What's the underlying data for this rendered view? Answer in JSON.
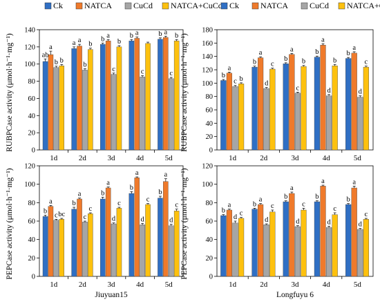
{
  "legend": {
    "items": [
      {
        "label": "Ck",
        "color": "#2f6fc4"
      },
      {
        "label": "NATCA",
        "color": "#ef7a2b"
      },
      {
        "label": "CuCd",
        "color": "#a6a6a6"
      },
      {
        "label": "NATCA+CuCd",
        "color": "#fdc10e"
      }
    ]
  },
  "chart_data": [
    {
      "type": "bar",
      "ylabel": "RUBPCase activity (μmol·h⁻¹·mg⁻¹)",
      "xlabel": "",
      "ylim": [
        0,
        140
      ],
      "yticks": [
        0,
        20,
        40,
        60,
        80,
        100,
        120,
        140
      ],
      "categories": [
        "1d",
        "2d",
        "3d",
        "4d",
        "5d"
      ],
      "series": [
        {
          "name": "Ck",
          "values": [
            103,
            118,
            123,
            127,
            129
          ],
          "errors": [
            3,
            2,
            1.5,
            1.5,
            1.5
          ],
          "labels": [
            "ab",
            "a",
            "b",
            "b",
            "b"
          ]
        },
        {
          "name": "NATCA",
          "values": [
            111,
            121,
            127,
            130,
            131
          ],
          "errors": [
            4,
            2,
            1.5,
            1.5,
            1.5
          ],
          "labels": [
            "a",
            "a",
            "a",
            "a",
            "a"
          ]
        },
        {
          "name": "CuCd",
          "values": [
            96,
            93,
            88,
            85,
            83
          ],
          "errors": [
            1.5,
            1.5,
            1.5,
            1.5,
            1.5
          ],
          "labels": [
            "b",
            "b",
            "c",
            "c",
            "c"
          ]
        },
        {
          "name": "NATCA+CuCd",
          "values": [
            98,
            117,
            120,
            124,
            127
          ],
          "errors": [
            1.5,
            1.5,
            1.5,
            1.5,
            1.5
          ],
          "labels": [
            "b",
            "b",
            "b",
            "",
            "b"
          ]
        }
      ]
    },
    {
      "type": "bar",
      "ylabel": "RUBPCase activity (μmol·h⁻¹·mg⁻¹)",
      "xlabel": "",
      "ylim": [
        0,
        180
      ],
      "yticks": [
        0,
        20,
        40,
        60,
        80,
        100,
        120,
        140,
        160,
        180
      ],
      "categories": [
        "1d",
        "2d",
        "3d",
        "4d",
        "5d"
      ],
      "series": [
        {
          "name": "Ck",
          "values": [
            104,
            124,
            129,
            139,
            137
          ],
          "errors": [
            1.5,
            1.5,
            1.5,
            1.5,
            1.5
          ],
          "labels": [
            "b",
            "b",
            "b",
            "b",
            "b"
          ]
        },
        {
          "name": "NATCA",
          "values": [
            115,
            138,
            143,
            157,
            145
          ],
          "errors": [
            1.5,
            1.5,
            1.5,
            2,
            2
          ],
          "labels": [
            "a",
            "a",
            "a",
            "a",
            "a"
          ]
        },
        {
          "name": "CuCd",
          "values": [
            95,
            92,
            85,
            81,
            79
          ],
          "errors": [
            1.5,
            1.5,
            1.5,
            2,
            2
          ],
          "labels": [
            "c",
            "d",
            "c",
            "d",
            "d"
          ]
        },
        {
          "name": "NATCA+CuCd",
          "values": [
            99,
            121,
            125,
            126,
            124
          ],
          "errors": [
            1.5,
            1.5,
            1.5,
            2,
            1.5
          ],
          "labels": [
            "b",
            "c",
            "b",
            "b",
            "c"
          ]
        }
      ]
    },
    {
      "type": "bar",
      "ylabel": "PEPCase activity (μmol·h⁻¹·mg⁻¹)",
      "xlabel": "Jiuyuan15",
      "ylim": [
        0,
        120
      ],
      "yticks": [
        0,
        20,
        40,
        60,
        80,
        100,
        120
      ],
      "categories": [
        "1d",
        "2d",
        "3d",
        "4d",
        "5d"
      ],
      "series": [
        {
          "name": "Ck",
          "values": [
            65,
            73,
            84,
            90,
            85
          ],
          "errors": [
            1.5,
            2,
            2,
            2,
            2
          ],
          "labels": [
            "b",
            "b",
            "b",
            "b",
            "b"
          ]
        },
        {
          "name": "NATCA",
          "values": [
            76,
            84,
            96,
            107,
            103
          ],
          "errors": [
            1,
            1,
            1,
            1,
            3
          ],
          "labels": [
            "a",
            "a",
            "a",
            "a",
            "a"
          ]
        },
        {
          "name": "CuCd",
          "values": [
            61,
            59,
            57,
            56,
            55
          ],
          "errors": [
            1,
            1,
            1,
            1.5,
            1.5
          ],
          "labels": [
            "c",
            "c",
            "d",
            "d",
            "d"
          ]
        },
        {
          "name": "NATCA+CuCd",
          "values": [
            62,
            68,
            74,
            78,
            71
          ],
          "errors": [
            1,
            1,
            1,
            1,
            2
          ],
          "labels": [
            "bc",
            "c",
            "c",
            "c",
            "c"
          ]
        }
      ]
    },
    {
      "type": "bar",
      "ylabel": "PEPCase activity (μmol·h⁻¹·mg⁻¹)",
      "xlabel": "Longfuyu 6",
      "ylim": [
        0,
        120
      ],
      "yticks": [
        0,
        20,
        40,
        60,
        80,
        100,
        120
      ],
      "categories": [
        "1d",
        "2d",
        "3d",
        "4d",
        "5d"
      ],
      "series": [
        {
          "name": "Ck",
          "values": [
            66,
            73,
            81,
            81,
            78
          ],
          "errors": [
            1,
            1,
            1,
            1,
            1
          ],
          "labels": [
            "b",
            "b",
            "b",
            "b",
            "b"
          ]
        },
        {
          "name": "NATCA",
          "values": [
            72,
            78,
            90,
            98,
            96
          ],
          "errors": [
            1,
            1,
            1.5,
            1,
            2
          ],
          "labels": [
            "a",
            "a",
            "a",
            "a",
            "a"
          ]
        },
        {
          "name": "CuCd",
          "values": [
            58,
            56,
            54,
            53,
            51
          ],
          "errors": [
            2,
            1,
            1,
            1.5,
            1
          ],
          "labels": [
            "d",
            "d",
            "d",
            "d",
            "d"
          ]
        },
        {
          "name": "NATCA+CuCd",
          "values": [
            63,
            70,
            72,
            67,
            62
          ],
          "errors": [
            1,
            2,
            2,
            2,
            1
          ],
          "labels": [
            "c",
            "c",
            "c",
            "c",
            "c"
          ]
        }
      ]
    }
  ]
}
